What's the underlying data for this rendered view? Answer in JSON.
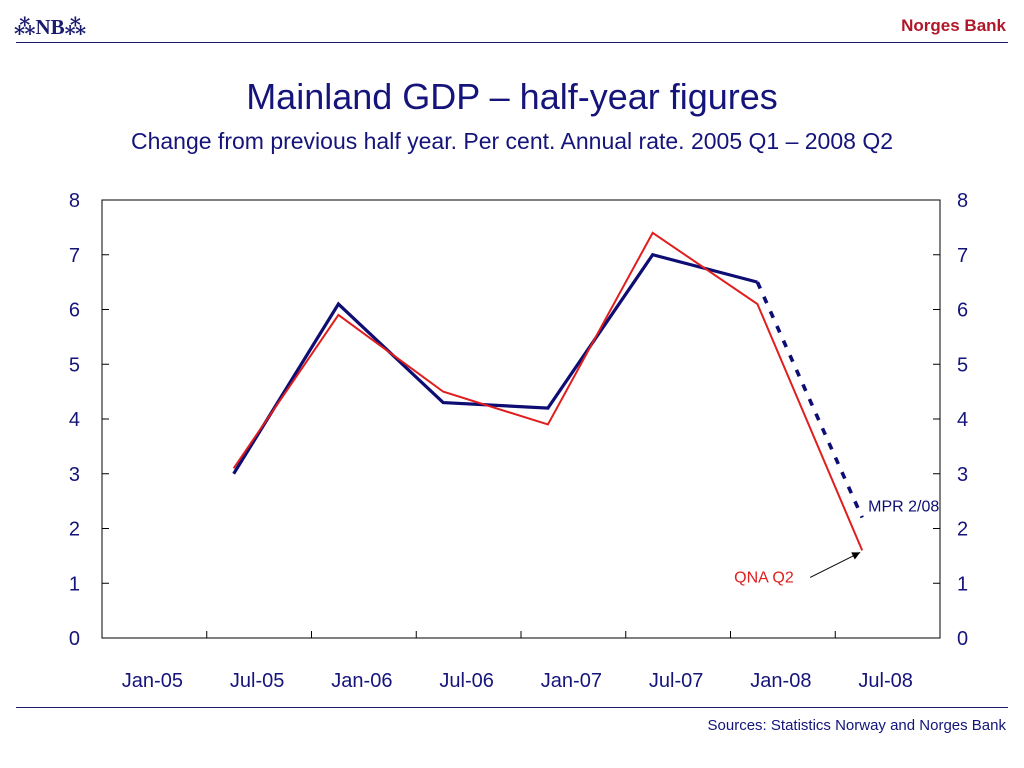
{
  "header": {
    "logo_text": "⁂NB⁂",
    "brand": "Norges Bank"
  },
  "footer": {
    "source": "Sources: Statistics Norway and Norges Bank"
  },
  "colors": {
    "mpr": "#0d0d73",
    "qna": "#e01e1e",
    "text": "#14147a",
    "brand": "#b0182a"
  },
  "chart_data": {
    "type": "line",
    "title": "Mainland GDP – half-year figures",
    "subtitle": "Change from previous half year. Per cent. Annual rate. 2005 Q1 – 2008 Q2",
    "x_tick_labels": [
      "Jan-05",
      "Jul-05",
      "Jan-06",
      "Jul-06",
      "Jan-07",
      "Jul-07",
      "Jan-08",
      "Jul-08"
    ],
    "ylim": [
      0,
      8
    ],
    "y_ticks": [
      0,
      1,
      2,
      3,
      4,
      5,
      6,
      7,
      8
    ],
    "y_axis_both_sides": true,
    "grid": false,
    "series": [
      {
        "name": "MPR 2/08",
        "color": "#0d0d73",
        "x": [
          "Jun-05",
          "Dec-05",
          "Jun-06",
          "Dec-06",
          "Jun-07",
          "Dec-07",
          "Jun-08"
        ],
        "values": [
          3.0,
          6.1,
          4.3,
          4.2,
          7.0,
          6.5,
          2.2
        ],
        "projection_from": "Dec-07"
      },
      {
        "name": "QNA Q2",
        "color": "#e01e1e",
        "x": [
          "Jun-05",
          "Dec-05",
          "Jun-06",
          "Dec-06",
          "Jun-07",
          "Dec-07",
          "Jun-08"
        ],
        "values": [
          3.1,
          5.9,
          4.5,
          3.9,
          7.4,
          6.1,
          1.6
        ]
      }
    ]
  }
}
